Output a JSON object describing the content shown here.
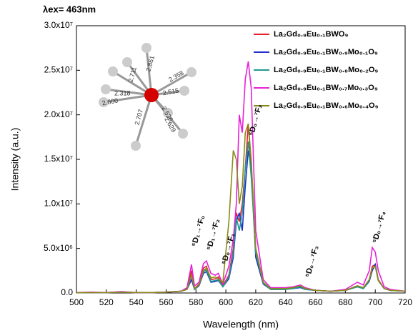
{
  "chart_data": {
    "type": "line",
    "title": "λex= 463nm",
    "x_label": "Wavelength (nm)",
    "y_label": "Intensity (a.u.)",
    "xlim": [
      500,
      720
    ],
    "xticks": [
      500,
      520,
      540,
      560,
      580,
      600,
      620,
      640,
      660,
      680,
      700,
      720
    ],
    "ylim": [
      0,
      30000000.0
    ],
    "yticks": [
      {
        "value": 0,
        "label": "0.0"
      },
      {
        "value": 5000000.0,
        "label": "5.0x10⁶"
      },
      {
        "value": 10000000.0,
        "label": "1.0x10⁷"
      },
      {
        "value": 15000000.0,
        "label": "1.5x10⁷"
      },
      {
        "value": 20000000.0,
        "label": "2.0x10⁷"
      },
      {
        "value": 25000000.0,
        "label": "2.5x10⁷"
      },
      {
        "value": 30000000.0,
        "label": "3.0x10⁷"
      }
    ],
    "legend": "upper right",
    "x": [
      500,
      510,
      520,
      530,
      540,
      550,
      560,
      570,
      574,
      577,
      579,
      582,
      585,
      587,
      590,
      593,
      595,
      598,
      602,
      605,
      607,
      609,
      611,
      613,
      615,
      617,
      620,
      625,
      630,
      640,
      645,
      650,
      653,
      660,
      670,
      680,
      688,
      692,
      696,
      698,
      700,
      702,
      706,
      710,
      720
    ],
    "series": [
      {
        "name": "La₂Gd₀.₉Eu₀.₁BWO₉",
        "color": "#e8202a",
        "values": [
          50000.0,
          50000.0,
          50000.0,
          100000.0,
          50000.0,
          50000.0,
          100000.0,
          200000.0,
          500000.0,
          2500000.0,
          500000.0,
          1000000.0,
          2800000.0,
          3000000.0,
          1500000.0,
          1600000.0,
          1800000.0,
          800000.0,
          2000000.0,
          5000000.0,
          9000000.0,
          8000000.0,
          10000000.0,
          14000000.0,
          19000000.0,
          14000000.0,
          5000000.0,
          1200000.0,
          500000.0,
          500000.0,
          600000.0,
          800000.0,
          500000.0,
          300000.0,
          200000.0,
          300000.0,
          800000.0,
          600000.0,
          1500000.0,
          3000000.0,
          3200000.0,
          1500000.0,
          500000.0,
          300000.0,
          200000.0
        ]
      },
      {
        "name": "La₂Gd₀.₉Eu₀.₁BW₀.₉Mo₀.₁O₉",
        "color": "#2030c8",
        "values": [
          50000.0,
          50000.0,
          50000.0,
          100000.0,
          50000.0,
          50000.0,
          100000.0,
          200000.0,
          400000.0,
          1500000.0,
          400000.0,
          800000.0,
          2200000.0,
          2400000.0,
          1200000.0,
          1300000.0,
          1400000.0,
          700000.0,
          1600000.0,
          4000000.0,
          8000000.0,
          9000000.0,
          7000000.0,
          12000000.0,
          16000000.0,
          14000000.0,
          4000000.0,
          1000000.0,
          400000.0,
          400000.0,
          500000.0,
          600000.0,
          400000.0,
          300000.0,
          200000.0,
          300000.0,
          700000.0,
          500000.0,
          1300000.0,
          2500000.0,
          3200000.0,
          1400000.0,
          500000.0,
          300000.0,
          200000.0
        ]
      },
      {
        "name": "La₂Gd₀.₉Eu₀.₁BW₀.₈Mo₀.₂O₉",
        "color": "#1f9a8c",
        "values": [
          50000.0,
          50000.0,
          50000.0,
          100000.0,
          50000.0,
          50000.0,
          100000.0,
          200000.0,
          400000.0,
          2000000.0,
          400000.0,
          900000.0,
          2400000.0,
          2600000.0,
          1300000.0,
          1400000.0,
          1500000.0,
          700000.0,
          1800000.0,
          4500000.0,
          8500000.0,
          7000000.0,
          9000000.0,
          14000000.0,
          17000000.0,
          13000000.0,
          4500000.0,
          1100000.0,
          400000.0,
          400000.0,
          500000.0,
          700000.0,
          400000.0,
          300000.0,
          200000.0,
          300000.0,
          700000.0,
          500000.0,
          1400000.0,
          2800000.0,
          3000000.0,
          1400000.0,
          500000.0,
          300000.0,
          200000.0
        ]
      },
      {
        "name": "La₂Gd₀.₉Eu₀.₁BW₀.₇Mo₀.₃O₉",
        "color": "#e820d8",
        "values": [
          50000.0,
          100000.0,
          50000.0,
          150000.0,
          50000.0,
          50000.0,
          100000.0,
          200000.0,
          600000.0,
          3200000.0,
          800000.0,
          1200000.0,
          3300000.0,
          3600000.0,
          2200000.0,
          2000000.0,
          2200000.0,
          1000000.0,
          3000000.0,
          6000000.0,
          10000000.0,
          20000000.0,
          18000000.0,
          24000000.0,
          26000000.0,
          23000000.0,
          7000000.0,
          1500000.0,
          600000.0,
          600000.0,
          700000.0,
          900000.0,
          600000.0,
          300000.0,
          200000.0,
          400000.0,
          1200000.0,
          900000.0,
          2500000.0,
          5100000.0,
          4600000.0,
          2500000.0,
          700000.0,
          400000.0,
          200000.0
        ]
      },
      {
        "name": "La₂Gd₀.₉Eu₀.₁BW₀.₆Mo₀.₄O₉",
        "color": "#8a8a1a",
        "values": [
          50000.0,
          50000.0,
          50000.0,
          100000.0,
          50000.0,
          50000.0,
          100000.0,
          200000.0,
          400000.0,
          2000000.0,
          500000.0,
          900000.0,
          2500000.0,
          2800000.0,
          1700000.0,
          1800000.0,
          1600000.0,
          1200000.0,
          8000000.0,
          16000000.0,
          15000000.0,
          10000000.0,
          12000000.0,
          18000000.0,
          19000000.0,
          15000000.0,
          5000000.0,
          1200000.0,
          500000.0,
          500000.0,
          600000.0,
          800000.0,
          500000.0,
          300000.0,
          200000.0,
          300000.0,
          800000.0,
          600000.0,
          1500000.0,
          2800000.0,
          3000000.0,
          1400000.0,
          500000.0,
          300000.0,
          200000.0
        ]
      }
    ],
    "annotations": [
      "⁵D₁→⁷F₀",
      "⁵D₁→⁷F₂",
      "⁵D₀→⁷F₁",
      "⁵D₀→⁷F₂",
      "⁵D₀→⁷F₃",
      "⁵D₀→⁷F₄"
    ],
    "inset_labels": [
      "2.861",
      "2.358",
      "2.711",
      "2.318",
      "2.515",
      "2.600",
      "2.526",
      "2.707",
      "2.629"
    ]
  }
}
